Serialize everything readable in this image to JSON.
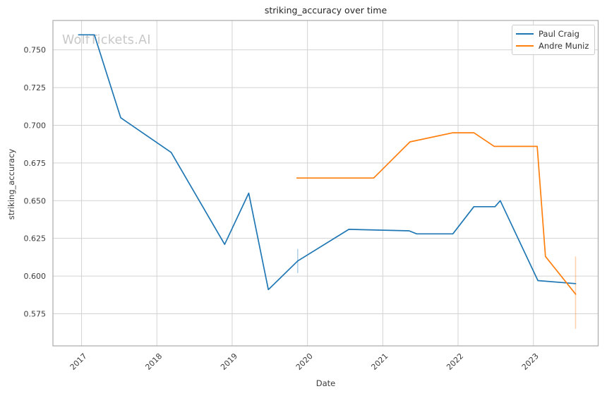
{
  "page": {
    "title": "striking_accuracy over time",
    "watermark": "WolfTickets.AI",
    "xlabel": "Date",
    "ylabel": "striking_accuracy"
  },
  "legend": {
    "position": "upper right",
    "items": [
      {
        "label": "Paul Craig",
        "color": "#1f77b4"
      },
      {
        "label": "Andre Muniz",
        "color": "#ff7f0e"
      }
    ]
  },
  "chart_data": {
    "type": "line",
    "title": "striking_accuracy over time",
    "xlabel": "Date",
    "ylabel": "striking_accuracy",
    "xlim": [
      2016.62,
      2023.86
    ],
    "ylim": [
      0.5537,
      0.7695
    ],
    "x_ticks": [
      2017,
      2018,
      2019,
      2020,
      2021,
      2022,
      2023
    ],
    "x_tick_labels": [
      "2017",
      "2018",
      "2019",
      "2020",
      "2021",
      "2022",
      "2023"
    ],
    "y_ticks": [
      0.575,
      0.6,
      0.625,
      0.65,
      0.675,
      0.7,
      0.725,
      0.75
    ],
    "y_tick_labels": [
      "0.575",
      "0.600",
      "0.625",
      "0.650",
      "0.675",
      "0.700",
      "0.725",
      "0.750"
    ],
    "grid": true,
    "grid_color": "#d3d3d3",
    "spine_color": "#ababab",
    "tick_color": "#3c3c3c",
    "legend_position": "upper right",
    "series": [
      {
        "name": "Paul Craig",
        "color": "#1f77b4",
        "x": [
          2016.96,
          2017.17,
          2017.52,
          2018.19,
          2018.9,
          2019.22,
          2019.48,
          2019.87,
          2020.55,
          2021.35,
          2021.45,
          2021.93,
          2022.21,
          2022.49,
          2022.56,
          2023.06,
          2023.56
        ],
        "y": [
          0.76,
          0.76,
          0.705,
          0.682,
          0.621,
          0.655,
          0.591,
          0.61,
          0.631,
          0.63,
          0.628,
          0.628,
          0.646,
          0.646,
          0.65,
          0.597,
          0.595
        ],
        "error_bar": {
          "x": 2019.87,
          "y_low": 0.602,
          "y_high": 0.618
        }
      },
      {
        "name": "Andre Muniz",
        "color": "#ff7f0e",
        "x": [
          2019.86,
          2020.88,
          2021.36,
          2021.93,
          2022.21,
          2022.48,
          2023.05,
          2023.16,
          2023.56
        ],
        "y": [
          0.665,
          0.665,
          0.689,
          0.695,
          0.695,
          0.686,
          0.686,
          0.613,
          0.588
        ],
        "error_bar": {
          "x": 2023.56,
          "y_low": 0.565,
          "y_high": 0.613
        }
      }
    ]
  }
}
